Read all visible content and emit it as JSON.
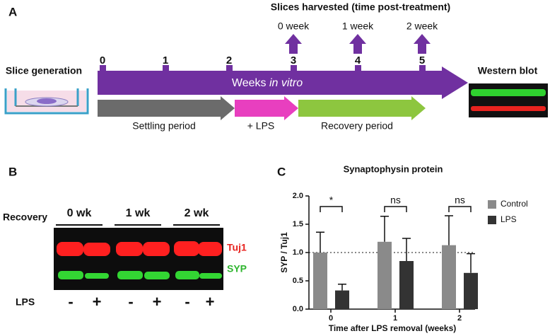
{
  "panel_a": {
    "letter": "A",
    "harvest_title": "Slices harvested (time post-treatment)",
    "harvest_labels": [
      "0 week",
      "1 week",
      "2 week"
    ],
    "week_numbers": [
      "0",
      "1",
      "2",
      "3",
      "4",
      "5"
    ],
    "slice_generation": "Slice generation",
    "timeline_label": "Weeks",
    "timeline_label_italic": "in vitro",
    "western_blot": "Western blot",
    "phases": [
      "Settling period",
      "+ LPS",
      "Recovery period"
    ]
  },
  "panel_b": {
    "letter": "B",
    "recovery": "Recovery",
    "timepoints": [
      "0 wk",
      "1 wk",
      "2 wk"
    ],
    "bands": [
      "Tuj1",
      "SYP"
    ],
    "treatment": "LPS",
    "signs": [
      "-",
      "+",
      "-",
      "+",
      "-",
      "+"
    ]
  },
  "panel_c": {
    "letter": "C"
  },
  "chart_data": {
    "type": "bar",
    "title": "Synaptophysin protein",
    "y_label": "SYP / Tuj1",
    "x_label": "Time after LPS removal (weeks)",
    "categories": [
      "0",
      "1",
      "2"
    ],
    "series": [
      {
        "name": "Control",
        "color": "#8a8a8a",
        "values": [
          1.0,
          1.19,
          1.13
        ],
        "errors": [
          0.36,
          0.45,
          0.52
        ]
      },
      {
        "name": "LPS",
        "color": "#333333",
        "values": [
          0.33,
          0.85,
          0.64
        ],
        "errors": [
          0.11,
          0.4,
          0.34
        ]
      }
    ],
    "ylim": [
      0,
      2
    ],
    "yticks": [
      {
        "value": 0,
        "label": "0.0"
      },
      {
        "value": 0.5,
        "label": "0.5"
      },
      {
        "value": 1,
        "label": "1.0"
      },
      {
        "value": 1.5,
        "label": "1.5"
      },
      {
        "value": 2,
        "label": "2.0"
      }
    ],
    "reference_line": 1,
    "annotations": [
      "*",
      "ns",
      "ns"
    ],
    "legend": "right"
  }
}
